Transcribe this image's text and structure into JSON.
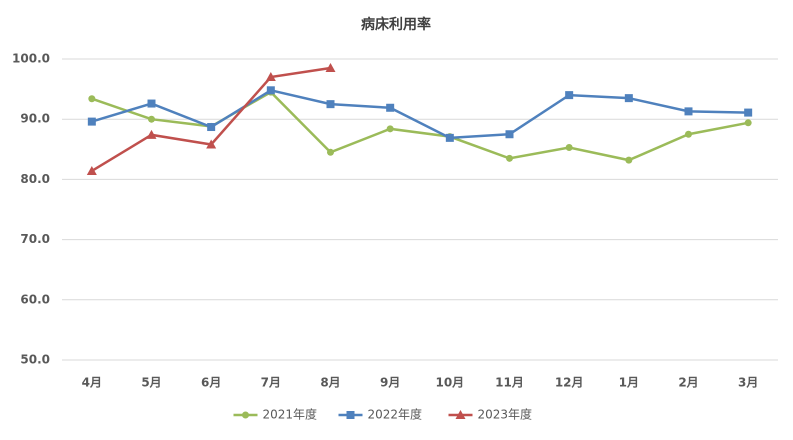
{
  "chart_data": {
    "type": "line",
    "title": "病床利用率",
    "categories": [
      "4月",
      "5月",
      "6月",
      "7月",
      "8月",
      "9月",
      "10月",
      "11月",
      "12月",
      "1月",
      "2月",
      "3月"
    ],
    "series": [
      {
        "name": "2021年度",
        "color": "#9bbb59",
        "marker": "circle",
        "values": [
          93.4,
          90.0,
          88.8,
          94.5,
          84.5,
          88.4,
          87.1,
          83.5,
          85.3,
          83.2,
          87.5,
          89.4
        ]
      },
      {
        "name": "2022年度",
        "color": "#4f81bd",
        "marker": "square",
        "values": [
          89.6,
          92.6,
          88.7,
          94.8,
          92.5,
          91.9,
          86.9,
          87.5,
          94.0,
          93.5,
          91.3,
          91.1
        ]
      },
      {
        "name": "2023年度",
        "color": "#c0504d",
        "marker": "triangle",
        "values": [
          81.4,
          87.4,
          85.8,
          97.0,
          98.5,
          null,
          null,
          null,
          null,
          null,
          null,
          null
        ]
      }
    ],
    "ylim": [
      50,
      100
    ],
    "yticks": [
      {
        "value": 50,
        "label": "50.0"
      },
      {
        "value": 60,
        "label": "60.0"
      },
      {
        "value": 70,
        "label": "70.0"
      },
      {
        "value": 80,
        "label": "80.0"
      },
      {
        "value": 90,
        "label": "90.0"
      },
      {
        "value": 100,
        "label": "100.0"
      }
    ],
    "grid": true,
    "legend": "bottom"
  }
}
